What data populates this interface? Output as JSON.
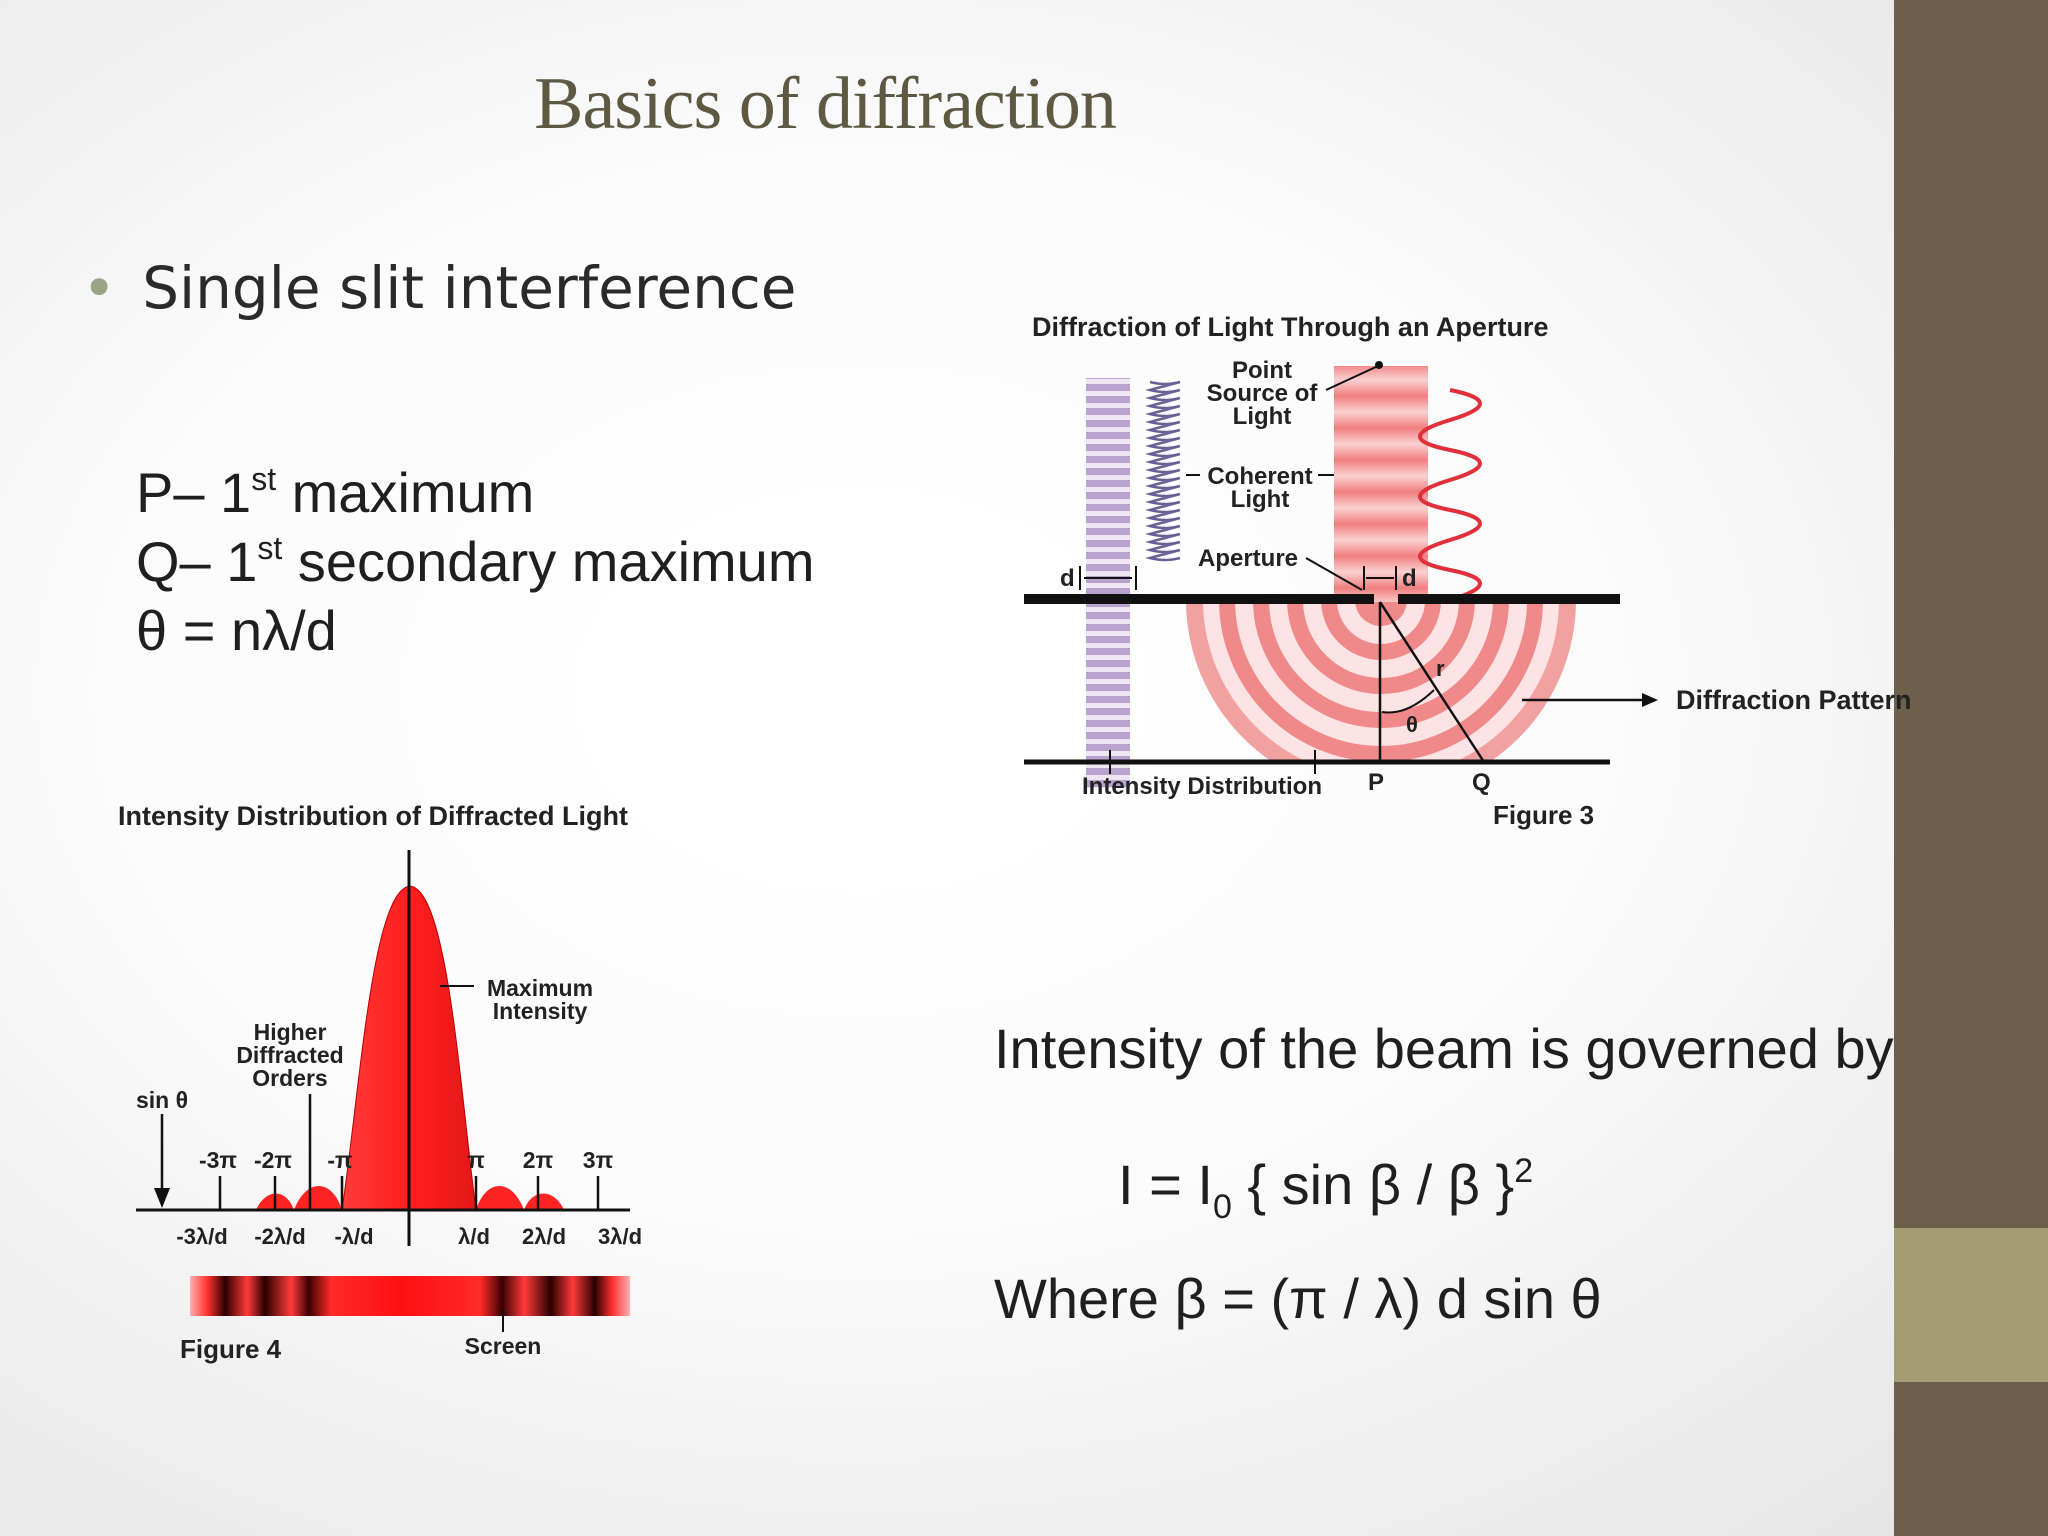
{
  "slide": {
    "title": "Basics of diffraction",
    "bullet": "Single slit interference",
    "definitions": {
      "p_prefix": "P– 1",
      "p_sup": "st",
      "p_rest": " maximum",
      "q_prefix": "Q– 1",
      "q_sup": "st",
      "q_rest": " secondary maximum",
      "theta": "θ = nλ/d"
    },
    "intensity_intro": "Intensity of the beam is governed by",
    "formula": {
      "lhs": "I = I",
      "sub": "0",
      "mid": " { sin β / β }",
      "sup": "2"
    },
    "where": "Where β = (π / λ) d sin θ"
  },
  "figure3": {
    "title": "Diffraction of Light Through an Aperture",
    "point_source": [
      "Point",
      "Source of",
      "Light"
    ],
    "coherent": [
      "Coherent",
      "Light"
    ],
    "aperture": "Aperture",
    "d": "d",
    "r": "r",
    "theta": "θ",
    "intensity_distribution": "Intensity Distribution",
    "p": "P",
    "q": "Q",
    "caption": "Figure 3",
    "diffraction_pattern": "Diffraction Pattern"
  },
  "figure4": {
    "title": "Intensity Distribution of Diffracted Light",
    "maximum": [
      "Maximum",
      "Intensity"
    ],
    "higher": [
      "Higher",
      "Diffracted",
      "Orders"
    ],
    "sin_theta": "sin θ",
    "top_ticks": [
      "-3π",
      "-2π",
      "-π",
      "π",
      "2π",
      "3π"
    ],
    "bottom_ticks": [
      "-3λ/d",
      "-2λ/d",
      "-λ/d",
      "λ/d",
      "2λ/d",
      "3λ/d"
    ],
    "caption": "Figure 4",
    "screen": "Screen"
  },
  "colors": {
    "sidebar": "#6c604a",
    "sidebar_accent": "#a49c72",
    "title": "#5f5843",
    "bullet": "#9aa588",
    "diffraction_red": "#ee2a2a"
  }
}
